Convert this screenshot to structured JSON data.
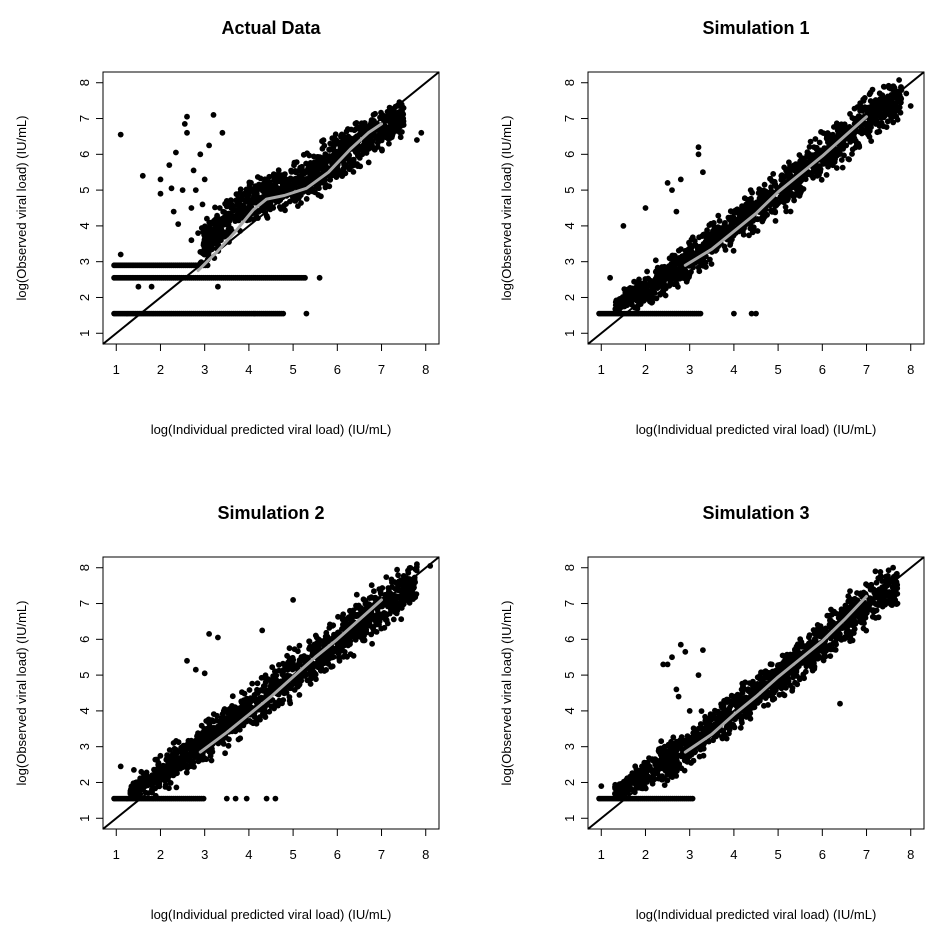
{
  "chart_data": [
    {
      "type": "scatter",
      "title": "Actual Data",
      "xlabel": "log(Individual predicted viral load)  (IU/mL)",
      "ylabel": "log(Observed viral load)  (IU/mL)",
      "xlim": [
        0.7,
        8.3
      ],
      "ylim": [
        0.7,
        8.3
      ],
      "xticks": [
        1,
        2,
        3,
        4,
        5,
        6,
        7,
        8
      ],
      "yticks": [
        1,
        2,
        3,
        4,
        5,
        6,
        7,
        8
      ],
      "grid": false,
      "reference_line": "identity",
      "cloud": {
        "band": [
          [
            2.9,
            2.6,
            4.0
          ],
          [
            3.5,
            3.4,
            5.0
          ],
          [
            4.2,
            4.0,
            5.6
          ],
          [
            5.0,
            4.3,
            5.9
          ],
          [
            6.0,
            5.0,
            6.8
          ],
          [
            7.0,
            5.9,
            7.5
          ],
          [
            7.5,
            6.4,
            7.7
          ]
        ],
        "n": 1100,
        "seed": 11
      },
      "floor_rows": [
        {
          "y": 2.9,
          "x_range": [
            0.95,
            3.1
          ]
        },
        {
          "y": 2.55,
          "x_range": [
            0.95,
            5.3
          ]
        },
        {
          "y": 1.55,
          "x_range": [
            0.95,
            4.8
          ]
        }
      ],
      "points": [
        [
          1.1,
          6.55
        ],
        [
          1.1,
          3.2
        ],
        [
          1.6,
          5.4
        ],
        [
          1.5,
          2.3
        ],
        [
          1.8,
          2.3
        ],
        [
          2.0,
          4.9
        ],
        [
          2.0,
          5.3
        ],
        [
          2.2,
          5.7
        ],
        [
          2.25,
          5.05
        ],
        [
          2.3,
          4.4
        ],
        [
          2.35,
          6.05
        ],
        [
          2.4,
          4.05
        ],
        [
          2.5,
          5.0
        ],
        [
          2.55,
          6.85
        ],
        [
          2.6,
          6.6
        ],
        [
          2.6,
          7.05
        ],
        [
          2.7,
          3.6
        ],
        [
          2.7,
          4.5
        ],
        [
          2.75,
          5.55
        ],
        [
          2.8,
          5.0
        ],
        [
          2.85,
          3.8
        ],
        [
          2.9,
          6.0
        ],
        [
          2.95,
          4.6
        ],
        [
          3.0,
          5.3
        ],
        [
          3.05,
          4.2
        ],
        [
          3.1,
          6.25
        ],
        [
          3.1,
          3.6
        ],
        [
          3.2,
          7.1
        ],
        [
          3.3,
          2.3
        ],
        [
          3.4,
          6.6
        ],
        [
          5.3,
          1.55
        ],
        [
          5.6,
          2.55
        ],
        [
          7.8,
          6.4
        ],
        [
          7.9,
          6.6
        ]
      ],
      "smooth": [
        [
          2.85,
          2.75
        ],
        [
          3.3,
          3.3
        ],
        [
          3.7,
          3.85
        ],
        [
          4.1,
          4.45
        ],
        [
          4.4,
          4.75
        ],
        [
          4.8,
          4.85
        ],
        [
          5.3,
          5.05
        ],
        [
          5.8,
          5.5
        ],
        [
          6.3,
          6.15
        ],
        [
          6.7,
          6.6
        ],
        [
          7.0,
          6.85
        ]
      ]
    },
    {
      "type": "scatter",
      "title": "Simulation 1",
      "xlabel": "log(Individual predicted viral load)  (IU/mL)",
      "ylabel": "log(Observed viral load)  (IU/mL)",
      "xlim": [
        0.7,
        8.3
      ],
      "ylim": [
        0.7,
        8.3
      ],
      "xticks": [
        1,
        2,
        3,
        4,
        5,
        6,
        7,
        8
      ],
      "yticks": [
        1,
        2,
        3,
        4,
        5,
        6,
        7,
        8
      ],
      "grid": false,
      "reference_line": "identity",
      "cloud": {
        "band": [
          [
            1.3,
            1.55,
            2.0
          ],
          [
            2.0,
            1.55,
            2.9
          ],
          [
            3.0,
            2.3,
            3.8
          ],
          [
            4.0,
            3.2,
            4.8
          ],
          [
            5.0,
            4.1,
            5.8
          ],
          [
            6.0,
            5.0,
            6.9
          ],
          [
            7.0,
            6.0,
            8.0
          ],
          [
            7.8,
            6.9,
            8.3
          ]
        ],
        "n": 1300,
        "seed": 23
      },
      "floor_rows": [
        {
          "y": 1.55,
          "x_range": [
            0.95,
            3.25
          ]
        }
      ],
      "points": [
        [
          1.2,
          2.55
        ],
        [
          1.5,
          4.0
        ],
        [
          2.0,
          4.5
        ],
        [
          2.5,
          5.2
        ],
        [
          2.6,
          5.0
        ],
        [
          2.7,
          4.4
        ],
        [
          2.8,
          5.3
        ],
        [
          3.2,
          6.2
        ],
        [
          3.2,
          6.0
        ],
        [
          3.3,
          5.5
        ],
        [
          4.0,
          1.55
        ],
        [
          4.4,
          1.55
        ],
        [
          4.5,
          1.55
        ],
        [
          7.6,
          7.9
        ],
        [
          8.0,
          7.35
        ],
        [
          7.9,
          7.7
        ]
      ],
      "smooth": [
        [
          2.9,
          2.9
        ],
        [
          3.5,
          3.35
        ],
        [
          4.0,
          3.85
        ],
        [
          4.5,
          4.35
        ],
        [
          5.0,
          4.95
        ],
        [
          5.5,
          5.45
        ],
        [
          6.0,
          5.95
        ],
        [
          6.5,
          6.5
        ],
        [
          7.0,
          7.05
        ]
      ]
    },
    {
      "type": "scatter",
      "title": "Simulation 2",
      "xlabel": "log(Individual predicted viral load)  (IU/mL)",
      "ylabel": "log(Observed viral load)  (IU/mL)",
      "xlim": [
        0.7,
        8.3
      ],
      "ylim": [
        0.7,
        8.3
      ],
      "xticks": [
        1,
        2,
        3,
        4,
        5,
        6,
        7,
        8
      ],
      "yticks": [
        1,
        2,
        3,
        4,
        5,
        6,
        7,
        8
      ],
      "grid": false,
      "reference_line": "identity",
      "cloud": {
        "band": [
          [
            1.3,
            1.55,
            2.0
          ],
          [
            2.0,
            1.55,
            2.9
          ],
          [
            3.0,
            2.3,
            3.9
          ],
          [
            4.0,
            3.2,
            4.9
          ],
          [
            5.0,
            4.1,
            5.9
          ],
          [
            6.0,
            5.0,
            6.9
          ],
          [
            7.0,
            6.0,
            8.0
          ],
          [
            7.8,
            6.9,
            8.3
          ]
        ],
        "n": 1300,
        "seed": 37
      },
      "floor_rows": [
        {
          "y": 1.55,
          "x_range": [
            0.95,
            3.0
          ]
        }
      ],
      "points": [
        [
          1.1,
          2.45
        ],
        [
          1.4,
          2.35
        ],
        [
          2.6,
          5.4
        ],
        [
          2.8,
          5.15
        ],
        [
          3.0,
          5.05
        ],
        [
          3.1,
          6.15
        ],
        [
          3.3,
          6.05
        ],
        [
          3.5,
          1.55
        ],
        [
          3.7,
          1.55
        ],
        [
          3.95,
          1.55
        ],
        [
          4.3,
          6.25
        ],
        [
          4.4,
          1.55
        ],
        [
          4.6,
          1.55
        ],
        [
          5.0,
          7.1
        ],
        [
          7.8,
          8.1
        ],
        [
          8.1,
          8.05
        ]
      ],
      "smooth": [
        [
          2.9,
          2.85
        ],
        [
          3.5,
          3.4
        ],
        [
          4.0,
          3.9
        ],
        [
          4.5,
          4.4
        ],
        [
          5.0,
          4.95
        ],
        [
          5.5,
          5.5
        ],
        [
          6.0,
          6.0
        ],
        [
          6.5,
          6.55
        ],
        [
          7.0,
          7.1
        ]
      ]
    },
    {
      "type": "scatter",
      "title": "Simulation 3",
      "xlabel": "log(Individual predicted viral load)  (IU/mL)",
      "ylabel": "log(Observed viral load)  (IU/mL)",
      "xlim": [
        0.7,
        8.3
      ],
      "ylim": [
        0.7,
        8.3
      ],
      "xticks": [
        1,
        2,
        3,
        4,
        5,
        6,
        7,
        8
      ],
      "yticks": [
        1,
        2,
        3,
        4,
        5,
        6,
        7,
        8
      ],
      "grid": false,
      "reference_line": "identity",
      "cloud": {
        "band": [
          [
            1.3,
            1.55,
            2.0
          ],
          [
            2.0,
            1.55,
            2.9
          ],
          [
            3.0,
            2.3,
            3.8
          ],
          [
            4.0,
            3.2,
            4.8
          ],
          [
            5.0,
            4.1,
            5.8
          ],
          [
            6.0,
            5.0,
            6.9
          ],
          [
            7.0,
            6.0,
            8.0
          ],
          [
            7.7,
            6.8,
            8.2
          ]
        ],
        "n": 1300,
        "seed": 53
      },
      "floor_rows": [
        {
          "y": 1.55,
          "x_range": [
            0.95,
            3.1
          ]
        }
      ],
      "points": [
        [
          1.0,
          1.9
        ],
        [
          2.4,
          5.3
        ],
        [
          2.5,
          5.3
        ],
        [
          2.6,
          5.5
        ],
        [
          2.7,
          4.6
        ],
        [
          2.75,
          4.4
        ],
        [
          2.8,
          5.85
        ],
        [
          2.9,
          5.65
        ],
        [
          3.0,
          4.0
        ],
        [
          3.2,
          5.0
        ],
        [
          3.3,
          5.7
        ],
        [
          6.4,
          4.2
        ],
        [
          7.2,
          7.9
        ],
        [
          7.5,
          7.6
        ],
        [
          7.7,
          7.0
        ],
        [
          7.6,
          8.0
        ]
      ],
      "smooth": [
        [
          2.9,
          2.85
        ],
        [
          3.5,
          3.35
        ],
        [
          4.0,
          3.9
        ],
        [
          4.5,
          4.4
        ],
        [
          5.0,
          4.95
        ],
        [
          5.5,
          5.45
        ],
        [
          6.0,
          5.95
        ],
        [
          6.5,
          6.55
        ],
        [
          7.0,
          7.2
        ]
      ]
    }
  ],
  "colors": {
    "points": "#000000",
    "smooth": "#a8a8a8",
    "identity_line": "#000000",
    "background": "#ffffff"
  }
}
